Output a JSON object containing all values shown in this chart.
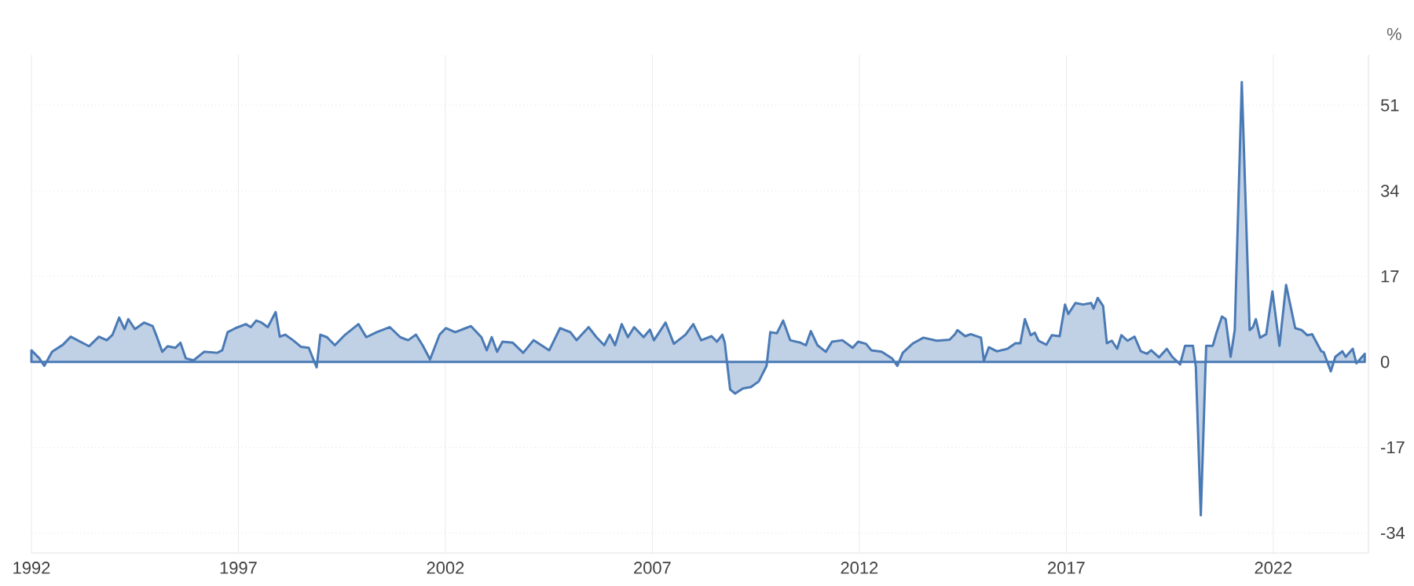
{
  "chart_data": {
    "type": "area",
    "ylabel": "%",
    "color": "#4a7ab5",
    "x": [
      1992.0,
      1992.19,
      1992.31,
      1992.5,
      1992.76,
      1992.95,
      1993.39,
      1993.63,
      1993.82,
      1993.96,
      1994.12,
      1994.25,
      1994.34,
      1994.5,
      1994.72,
      1994.93,
      1995.03,
      1995.16,
      1995.29,
      1995.48,
      1995.6,
      1995.73,
      1995.92,
      1996.17,
      1996.49,
      1996.61,
      1996.74,
      1996.93,
      1997.18,
      1997.3,
      1997.43,
      1997.56,
      1997.71,
      1997.9,
      1998.0,
      1998.13,
      1998.32,
      1998.51,
      1998.7,
      1998.89,
      1998.98,
      1999.14,
      1999.33,
      1999.58,
      1999.9,
      2000.09,
      2000.34,
      2000.66,
      2000.91,
      2001.1,
      2001.29,
      2001.45,
      2001.63,
      2001.86,
      2002.01,
      2002.24,
      2002.49,
      2002.62,
      2002.87,
      2003.0,
      2003.12,
      2003.25,
      2003.38,
      2003.63,
      2003.88,
      2004.13,
      2004.51,
      2004.77,
      2005.02,
      2005.17,
      2005.46,
      2005.65,
      2005.84,
      2005.97,
      2006.1,
      2006.26,
      2006.41,
      2006.56,
      2006.79,
      2006.94,
      2007.04,
      2007.32,
      2007.52,
      2007.8,
      2007.99,
      2008.18,
      2008.43,
      2008.56,
      2008.69,
      2008.75,
      2008.88,
      2009.0,
      2009.19,
      2009.38,
      2009.57,
      2009.76,
      2009.85,
      2010.01,
      2010.16,
      2010.33,
      2010.58,
      2010.71,
      2010.83,
      2010.99,
      2011.19,
      2011.34,
      2011.59,
      2011.84,
      2011.97,
      2012.16,
      2012.29,
      2012.54,
      2012.79,
      2012.92,
      2013.05,
      2013.3,
      2013.55,
      2013.87,
      2014.18,
      2014.31,
      2014.37,
      2014.56,
      2014.69,
      2014.94,
      2015.01,
      2015.13,
      2015.32,
      2015.58,
      2015.77,
      2015.89,
      2016.0,
      2016.14,
      2016.24,
      2016.33,
      2016.52,
      2016.65,
      2016.84,
      2016.97,
      2017.05,
      2017.22,
      2017.41,
      2017.6,
      2017.66,
      2017.76,
      2017.89,
      2017.98,
      2018.1,
      2018.23,
      2018.33,
      2018.48,
      2018.65,
      2018.8,
      2018.95,
      2019.05,
      2019.24,
      2019.43,
      2019.56,
      2019.75,
      2019.87,
      2020.06,
      2020.13,
      2020.25,
      2020.38,
      2020.54,
      2020.63,
      2020.76,
      2020.85,
      2020.97,
      2021.07,
      2021.24,
      2021.43,
      2021.51,
      2021.58,
      2021.68,
      2021.83,
      2021.98,
      2022.15,
      2022.31,
      2022.53,
      2022.69,
      2022.82,
      2022.94,
      2023.16,
      2023.22,
      2023.39,
      2023.5,
      2023.67,
      2023.75,
      2023.92,
      2024.01,
      2024.21
    ],
    "values": [
      2.3,
      0.7,
      -0.8,
      2,
      3.4,
      5,
      3.1,
      5,
      4.3,
      5.4,
      8.8,
      6.5,
      8.5,
      6.5,
      7.8,
      7.1,
      5,
      2,
      3.1,
      2.8,
      3.8,
      0.7,
      0.3,
      2,
      1.8,
      2.3,
      5.9,
      6.7,
      7.5,
      6.9,
      8.2,
      7.8,
      6.9,
      9.9,
      5,
      5.4,
      4.3,
      3,
      2.8,
      -1.1,
      5.4,
      4.9,
      3.3,
      5.4,
      7.5,
      4.9,
      5.9,
      6.9,
      4.9,
      4.3,
      5.4,
      3.3,
      0.5,
      5.4,
      6.7,
      5.9,
      6.7,
      7.1,
      4.9,
      2.3,
      4.9,
      2,
      4,
      3.8,
      1.8,
      4.3,
      2.3,
      6.7,
      5.9,
      4.3,
      6.9,
      4.9,
      3.3,
      5.4,
      3.3,
      7.5,
      4.9,
      6.9,
      4.9,
      6.4,
      4.3,
      7.8,
      3.6,
      5.4,
      7.5,
      4.3,
      5.1,
      4,
      5.4,
      3.8,
      -5.5,
      -6.3,
      -5.3,
      -5,
      -3.9,
      -0.8,
      5.9,
      5.7,
      8.2,
      4.3,
      3.8,
      3.3,
      6.1,
      3.3,
      2,
      4,
      4.3,
      2.8,
      4,
      3.6,
      2.3,
      2,
      0.7,
      -0.8,
      1.8,
      3.7,
      4.8,
      4.2,
      4.4,
      5.5,
      6.3,
      5.1,
      5.5,
      4.8,
      0.2,
      2.9,
      2.1,
      2.6,
      3.7,
      3.7,
      8.5,
      5.3,
      5.8,
      4.2,
      3.4,
      5.3,
      5.1,
      11.4,
      9.5,
      11.7,
      11.4,
      11.7,
      10.6,
      12.7,
      11.1,
      3.7,
      4.2,
      2.6,
      5.3,
      4.2,
      5,
      2.1,
      1.6,
      2.3,
      0.9,
      2.6,
      1,
      -0.5,
      3.2,
      3.2,
      -1,
      -30.5,
      3.2,
      3.2,
      5.8,
      9,
      8.5,
      1,
      6.3,
      55.6,
      6.3,
      6.9,
      8.5,
      4.8,
      5.5,
      14,
      3.2,
      15.3,
      6.7,
      6.3,
      5.3,
      5.5,
      2.1,
      1.9,
      -1.9,
      1,
      2.1,
      1,
      2.6,
      -0.3,
      1.6
    ],
    "xlim": [
      1992,
      2024.3
    ],
    "ylim": [
      -38,
      61
    ],
    "xticks": [
      1992,
      1997,
      2002,
      2007,
      2012,
      2017,
      2022
    ],
    "yticks": [
      -34,
      -17,
      0,
      17,
      34,
      51
    ],
    "grid": true
  }
}
